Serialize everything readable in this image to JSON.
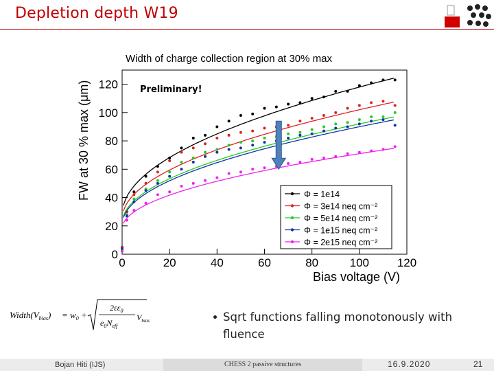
{
  "slide": {
    "title": "Depletion depth W19",
    "bullet": "Sqrt functions falling monotonously with fluence",
    "footer_author": "Bojan Hiti (IJS)",
    "footer_center": "CHESS 2 passive structures",
    "footer_date": "16.9.2020",
    "footer_page": "21",
    "accent_color": "#c00000"
  },
  "formula": {
    "lhs": "Width(V",
    "lhs_sub": "bias",
    "rhs_w0": "= w",
    "w0_sub": "0",
    "plus": "+",
    "num": "2εε",
    "num_sub": "0",
    "den": "e",
    "den_sub": "0",
    "den_n": "N",
    "den_n_sub": "eff",
    "v": "V",
    "v_sub": "bias"
  },
  "chart_data": {
    "type": "scatter",
    "title": "Width of charge collection region at 30% max",
    "xlabel": "Bias voltage (V)",
    "ylabel": "FW at 30 % max (μm)",
    "xlim": [
      0,
      120
    ],
    "ylim": [
      0,
      130
    ],
    "xticks": [
      0,
      20,
      40,
      60,
      80,
      100,
      120
    ],
    "yticks": [
      0,
      20,
      40,
      60,
      80,
      100,
      120
    ],
    "annotation": "Preliminary!",
    "legend_position": "bottom-right",
    "series": [
      {
        "name": "Φ = 1e14",
        "color": "#000000",
        "x": [
          0,
          2,
          5,
          10,
          15,
          20,
          25,
          30,
          35,
          40,
          45,
          50,
          55,
          60,
          65,
          70,
          75,
          80,
          85,
          90,
          95,
          100,
          105,
          110,
          115
        ],
        "y": [
          5,
          30,
          44,
          55,
          62,
          68,
          75,
          82,
          84,
          90,
          94,
          98,
          99,
          103,
          104,
          106,
          107,
          110,
          111,
          115,
          115,
          119,
          121,
          123,
          123
        ],
        "fit": {
          "w0": 28,
          "k": 9.0
        }
      },
      {
        "name": "Φ = 3e14 neq cm⁻²",
        "color": "#dd2222",
        "x": [
          0,
          2,
          5,
          10,
          15,
          20,
          25,
          30,
          35,
          40,
          45,
          50,
          55,
          60,
          65,
          70,
          75,
          80,
          85,
          90,
          95,
          100,
          105,
          110,
          115
        ],
        "y": [
          5,
          30,
          42,
          50,
          58,
          66,
          72,
          75,
          78,
          82,
          84,
          86,
          87,
          89,
          90,
          91,
          94,
          96,
          98,
          100,
          103,
          105,
          107,
          108,
          105
        ],
        "fit": {
          "w0": 25,
          "k": 7.7
        }
      },
      {
        "name": "Φ = 5e14 neq cm⁻²",
        "color": "#22cc22",
        "x": [
          0,
          2,
          5,
          10,
          15,
          20,
          25,
          30,
          35,
          40,
          45,
          50,
          55,
          60,
          65,
          70,
          75,
          80,
          85,
          90,
          95,
          100,
          105,
          110,
          115
        ],
        "y": [
          3,
          28,
          39,
          46,
          52,
          58,
          65,
          68,
          72,
          74,
          77,
          79,
          80,
          82,
          83,
          85,
          86,
          88,
          90,
          92,
          93,
          95,
          97,
          97,
          100
        ],
        "fit": {
          "w0": 22,
          "k": 7.0
        }
      },
      {
        "name": "Φ = 1e15 neq cm⁻²",
        "color": "#1133aa",
        "x": [
          0,
          2,
          5,
          10,
          15,
          20,
          25,
          30,
          35,
          40,
          45,
          50,
          55,
          60,
          65,
          70,
          75,
          80,
          85,
          90,
          95,
          100,
          105,
          110,
          115
        ],
        "y": [
          4,
          27,
          37,
          45,
          50,
          55,
          60,
          65,
          69,
          72,
          74,
          75,
          77,
          79,
          80,
          82,
          84,
          85,
          87,
          89,
          90,
          92,
          94,
          95,
          91
        ],
        "fit": {
          "w0": 21,
          "k": 6.9
        }
      },
      {
        "name": "Φ = 2e15 neq cm⁻²",
        "color": "#ee22ee",
        "x": [
          0,
          2,
          5,
          10,
          15,
          20,
          25,
          30,
          35,
          40,
          45,
          50,
          55,
          60,
          65,
          70,
          75,
          80,
          85,
          90,
          95,
          100,
          105,
          110,
          115
        ],
        "y": [
          2,
          24,
          31,
          36,
          42,
          44,
          48,
          50,
          52,
          54,
          57,
          58,
          60,
          61,
          62,
          64,
          65,
          67,
          68,
          69,
          71,
          72,
          73,
          74,
          76
        ],
        "fit": {
          "w0": 18,
          "k": 5.3
        }
      }
    ]
  }
}
